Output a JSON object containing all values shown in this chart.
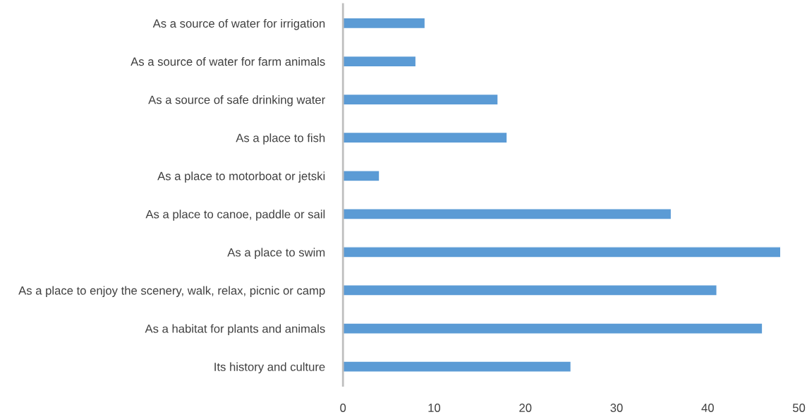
{
  "chart_data": {
    "type": "bar",
    "orientation": "horizontal",
    "categories": [
      "As a source of water for irrigation",
      "As a source of water for farm animals",
      "As a source of safe drinking water",
      "As a place to fish",
      "As a place to motorboat or jetski",
      "As a place to canoe, paddle or sail",
      "As a place to swim",
      "As a place to enjoy the scenery, walk, relax, picnic or camp",
      "As a habitat for plants and animals",
      "Its history and culture"
    ],
    "values": [
      9,
      8,
      17,
      18,
      4,
      36,
      48,
      41,
      46,
      25
    ],
    "color": "#5b9bd5",
    "xlim": [
      0,
      50
    ],
    "xticks": [
      0,
      10,
      20,
      30,
      40,
      50
    ],
    "grid": false
  }
}
